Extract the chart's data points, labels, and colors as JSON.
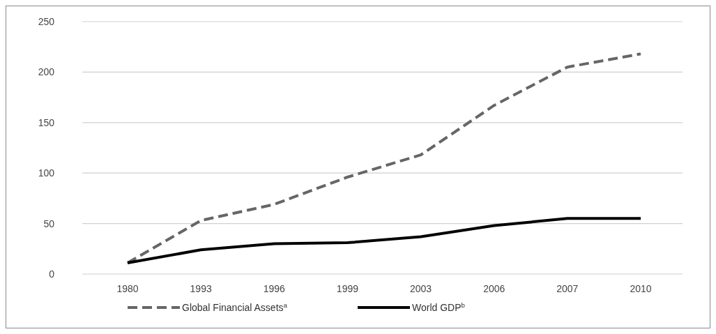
{
  "chart_data": {
    "type": "line",
    "categories": [
      "1980",
      "1993",
      "1996",
      "1999",
      "2003",
      "2006",
      "2007",
      "2010"
    ],
    "series": [
      {
        "name": "Global Financial Assets$^{a}$",
        "color": "#666666",
        "line_style": "dashed",
        "values": [
          11,
          53,
          69,
          96,
          118,
          167,
          205,
          218
        ]
      },
      {
        "name": "World GDP$^{b}$",
        "color": "#000000",
        "line_style": "solid",
        "values": [
          11,
          24,
          30,
          31,
          37,
          48,
          55,
          55
        ]
      }
    ],
    "ylim": [
      0,
      250
    ],
    "yticks": [
      0,
      50,
      100,
      150,
      200,
      250
    ],
    "grid": "y",
    "legend": "bottom",
    "marker": "none"
  }
}
